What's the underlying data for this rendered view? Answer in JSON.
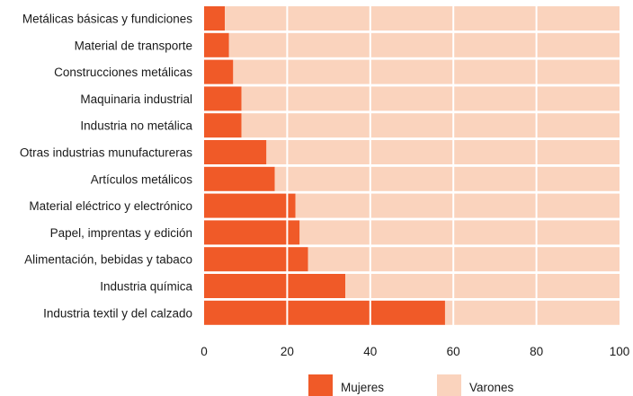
{
  "chart_data": {
    "type": "bar",
    "orientation": "horizontal",
    "stacked": true,
    "categories": [
      "Metálicas básicas y fundiciones",
      "Material de transporte",
      "Construcciones metálicas",
      "Maquinaria industrial",
      "Industria no metálica",
      "Otras industrias munufactureras",
      "Artículos metálicos",
      "Material eléctrico y electrónico",
      "Papel, imprentas y edición",
      "Alimentación, bebidas y tabaco",
      "Industria química",
      "Industria textil y del calzado"
    ],
    "series": [
      {
        "name": "Mujeres",
        "values": [
          5,
          6,
          7,
          9,
          9,
          15,
          17,
          22,
          23,
          25,
          34,
          58
        ]
      },
      {
        "name": "Varones",
        "values": [
          95,
          94,
          93,
          91,
          91,
          85,
          83,
          78,
          77,
          75,
          66,
          42
        ]
      }
    ],
    "xlim": [
      0,
      100
    ],
    "xticks": [
      0,
      20,
      40,
      60,
      80,
      100
    ],
    "grid": true,
    "legend_position": "bottom",
    "colors": {
      "Mujeres": "#f05a28",
      "Varones": "#fad3bd",
      "grid": "#ffffff"
    }
  }
}
